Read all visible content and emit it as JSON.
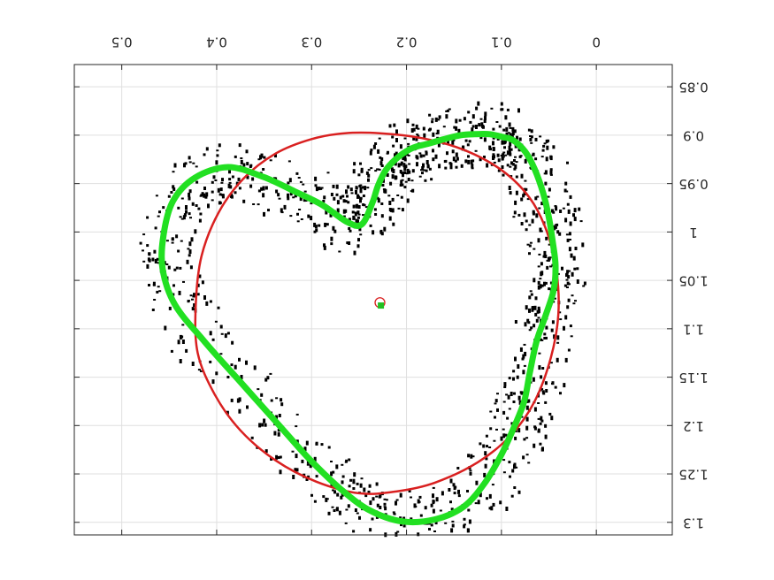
{
  "chart_data": {
    "type": "scatter",
    "title": "",
    "xlabel": "",
    "ylabel": "",
    "x_reversed": true,
    "y_reversed": true,
    "labels_rotated_180": true,
    "xlim": [
      -0.08,
      0.55
    ],
    "ylim": [
      0.827,
      1.313
    ],
    "xticks": [
      0,
      0.1,
      0.2,
      0.3,
      0.4,
      0.5
    ],
    "xtick_labels": [
      "0",
      "0.1",
      "0.2",
      "0.3",
      "0.4",
      "0.5"
    ],
    "yticks": [
      0.85,
      0.9,
      0.95,
      1,
      1.05,
      1.1,
      1.15,
      1.2,
      1.25,
      1.3
    ],
    "ytick_labels": [
      "0.85",
      "0.9",
      "0.95",
      "1",
      "1.05",
      "1.1",
      "1.15",
      "1.2",
      "1.25",
      "1.3"
    ],
    "grid": true,
    "colors": {
      "points": "#000000",
      "fit_circle": "#d92020",
      "contour": "#22e022",
      "axis": "#262626",
      "grid": "#dfdfdf"
    },
    "contour": {
      "color": "#22e022",
      "points": [
        [
          0.247,
          0.992
        ],
        [
          0.236,
          0.97
        ],
        [
          0.23,
          0.952
        ],
        [
          0.221,
          0.935
        ],
        [
          0.208,
          0.922
        ],
        [
          0.193,
          0.913
        ],
        [
          0.178,
          0.909
        ],
        [
          0.16,
          0.904
        ],
        [
          0.143,
          0.9
        ],
        [
          0.128,
          0.899
        ],
        [
          0.112,
          0.899
        ],
        [
          0.098,
          0.902
        ],
        [
          0.088,
          0.905
        ],
        [
          0.075,
          0.917
        ],
        [
          0.065,
          0.935
        ],
        [
          0.056,
          0.96
        ],
        [
          0.05,
          0.985
        ],
        [
          0.046,
          1.01
        ],
        [
          0.043,
          1.035
        ],
        [
          0.045,
          1.06
        ],
        [
          0.053,
          1.085
        ],
        [
          0.063,
          1.113
        ],
        [
          0.07,
          1.145
        ],
        [
          0.076,
          1.175
        ],
        [
          0.086,
          1.2
        ],
        [
          0.1,
          1.23
        ],
        [
          0.118,
          1.26
        ],
        [
          0.14,
          1.284
        ],
        [
          0.17,
          1.297
        ],
        [
          0.205,
          1.299
        ],
        [
          0.24,
          1.287
        ],
        [
          0.27,
          1.265
        ],
        [
          0.302,
          1.235
        ],
        [
          0.334,
          1.2
        ],
        [
          0.375,
          1.155
        ],
        [
          0.413,
          1.113
        ],
        [
          0.444,
          1.075
        ],
        [
          0.457,
          1.038
        ],
        [
          0.456,
          1.003
        ],
        [
          0.446,
          0.968
        ],
        [
          0.423,
          0.944
        ],
        [
          0.388,
          0.933
        ],
        [
          0.351,
          0.943
        ],
        [
          0.318,
          0.958
        ],
        [
          0.289,
          0.972
        ],
        [
          0.262,
          0.99
        ],
        [
          0.247,
          0.992
        ]
      ]
    },
    "fit_circle": {
      "color": "#d92020",
      "center": [
        0.228,
        1.073
      ],
      "points": [
        [
          0.228,
          0.898
        ],
        [
          0.184,
          0.903
        ],
        [
          0.14,
          0.915
        ],
        [
          0.1,
          0.936
        ],
        [
          0.07,
          0.965
        ],
        [
          0.052,
          1.0
        ],
        [
          0.042,
          1.04
        ],
        [
          0.04,
          1.085
        ],
        [
          0.048,
          1.13
        ],
        [
          0.065,
          1.175
        ],
        [
          0.09,
          1.21
        ],
        [
          0.125,
          1.238
        ],
        [
          0.17,
          1.259
        ],
        [
          0.21,
          1.268
        ],
        [
          0.25,
          1.27
        ],
        [
          0.295,
          1.258
        ],
        [
          0.338,
          1.236
        ],
        [
          0.375,
          1.205
        ],
        [
          0.402,
          1.168
        ],
        [
          0.42,
          1.125
        ],
        [
          0.422,
          1.075
        ],
        [
          0.416,
          1.025
        ],
        [
          0.398,
          0.98
        ],
        [
          0.372,
          0.945
        ],
        [
          0.338,
          0.919
        ],
        [
          0.3,
          0.904
        ],
        [
          0.265,
          0.898
        ],
        [
          0.228,
          0.898
        ]
      ]
    },
    "centroid": {
      "x": 0.227,
      "y": 1.076,
      "color": "#22c022"
    }
  }
}
